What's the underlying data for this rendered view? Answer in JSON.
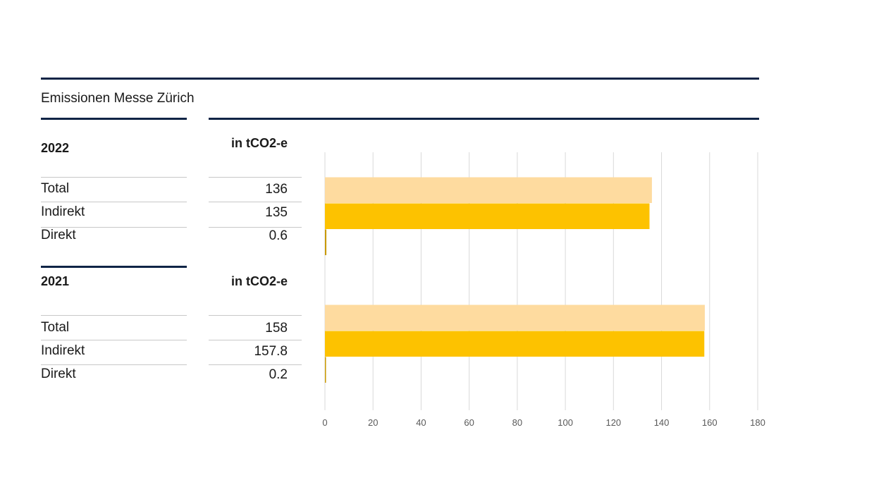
{
  "title": "Emissionen Messe Zürich",
  "colors": {
    "rule": "#0f2446",
    "total": "#fedb9f",
    "indirekt": "#fdc200",
    "direkt": "#c99a00",
    "grid": "#d9d9d9",
    "tick": "#595959"
  },
  "sections": [
    {
      "year": "2022",
      "unit": "in tCO2-e",
      "rows": [
        {
          "label": "Total",
          "value": "136"
        },
        {
          "label": "Indirekt",
          "value": "135"
        },
        {
          "label": "Direkt",
          "value": "0.6"
        }
      ]
    },
    {
      "year": "2021",
      "unit": "in tCO2-e",
      "rows": [
        {
          "label": "Total",
          "value": "158"
        },
        {
          "label": "Indirekt",
          "value": "157.8"
        },
        {
          "label": "Direkt",
          "value": "0.2"
        }
      ]
    }
  ],
  "chart_data": {
    "type": "bar",
    "orientation": "horizontal",
    "title": "",
    "xlabel": "",
    "ylabel": "",
    "xlim": [
      0,
      180
    ],
    "x_ticks": [
      "0",
      "20",
      "40",
      "60",
      "80",
      "100",
      "120",
      "140",
      "160",
      "180"
    ],
    "grid": true,
    "groups": [
      {
        "year": "2022",
        "bars": [
          {
            "category": "Total",
            "value": 136
          },
          {
            "category": "Indirekt",
            "value": 135
          },
          {
            "category": "Direkt",
            "value": 0.6
          }
        ]
      },
      {
        "year": "2021",
        "bars": [
          {
            "category": "Total",
            "value": 158
          },
          {
            "category": "Indirekt",
            "value": 157.8
          },
          {
            "category": "Direkt",
            "value": 0.2
          }
        ]
      }
    ]
  }
}
